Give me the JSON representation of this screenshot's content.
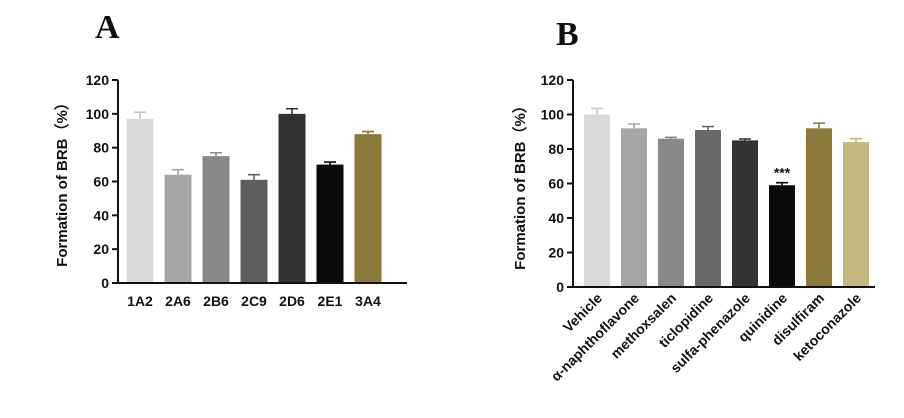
{
  "chart_data": [
    {
      "panel": "A",
      "type": "bar",
      "title": "",
      "xlabel": "",
      "ylabel": "Formation of BRB（%）",
      "ylim": [
        0,
        120
      ],
      "yticks": [
        0,
        20,
        40,
        60,
        80,
        100,
        120
      ],
      "categories": [
        "1A2",
        "2A6",
        "2B6",
        "2C9",
        "2D6",
        "2E1",
        "3A4"
      ],
      "values": [
        97,
        64,
        75,
        61,
        100,
        70,
        88
      ],
      "errors": [
        4,
        3,
        2,
        3,
        3,
        1.5,
        1.5
      ],
      "colors": [
        "#d9d9d9",
        "#a6a6a6",
        "#888888",
        "#5f5f5f",
        "#333333",
        "#0a0a0a",
        "#8b7a3a"
      ],
      "annotations": [
        "",
        "",
        "",
        "",
        "",
        "",
        ""
      ]
    },
    {
      "panel": "B",
      "type": "bar",
      "title": "",
      "xlabel": "",
      "ylabel": "Formation of BRB（%）",
      "ylim": [
        0,
        120
      ],
      "yticks": [
        0,
        20,
        40,
        60,
        80,
        100,
        120
      ],
      "categories": [
        "Vehicle",
        "α-naphthoflavone",
        "methoxsalen",
        "ticlopidine",
        "sulfa-phenazole",
        "quinidine",
        "disulfiram",
        "ketoconazole"
      ],
      "values": [
        100,
        92,
        86,
        91,
        85,
        59,
        92,
        84
      ],
      "errors": [
        3.5,
        2.5,
        0.8,
        2,
        0.8,
        1.5,
        3,
        2
      ],
      "colors": [
        "#d9d9d9",
        "#a6a6a6",
        "#888888",
        "#686868",
        "#333333",
        "#0a0a0a",
        "#8b7a3a",
        "#c4b87e"
      ],
      "annotations": [
        "",
        "",
        "",
        "",
        "",
        "***",
        "",
        ""
      ]
    }
  ]
}
